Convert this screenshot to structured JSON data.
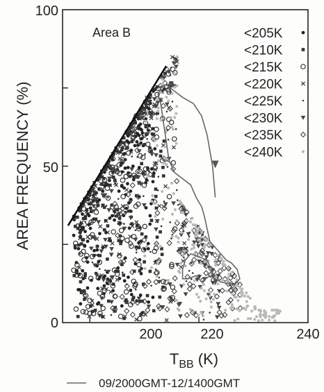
{
  "chart_data": {
    "type": "scatter",
    "xlabel": "T",
    "xlabel_sub": "BB",
    "xlabel_unit": " (K)",
    "ylabel": "AREA FREQUENCY (%)",
    "xlim": [
      195,
      240
    ],
    "ylim": [
      0,
      100
    ],
    "xticks": [
      "200",
      "220",
      "240"
    ],
    "yticks": [
      "0",
      "50",
      "100"
    ],
    "annotation": "Area B",
    "legend": {
      "position": "top-right",
      "entries": [
        {
          "label": "<205K",
          "marker": "dot"
        },
        {
          "label": "<210K",
          "marker": "square"
        },
        {
          "label": "<215K",
          "marker": "circle"
        },
        {
          "label": "<220K",
          "marker": "x"
        },
        {
          "label": "<225K",
          "marker": "small-dot"
        },
        {
          "label": "<230K",
          "marker": "triangle"
        },
        {
          "label": "<235K",
          "marker": "diamond"
        },
        {
          "label": "<240K",
          "marker": "gray-dot"
        }
      ]
    },
    "reference_line": {
      "x": [
        196,
        214
      ],
      "y": [
        31,
        82
      ]
    },
    "trajectory": {
      "label": "09/2000GMT-12/1400GMT",
      "x": [
        223,
        222.5,
        221.5,
        220,
        218.5,
        217.5,
        217,
        217,
        218,
        219.5,
        220.5,
        222,
        224,
        226.5,
        227.5,
        227,
        226.5,
        226,
        225,
        224,
        223,
        222,
        221.5,
        221,
        220.5,
        219.5,
        219,
        218.5,
        217,
        215.5,
        214.5,
        214,
        213.5,
        213,
        212.5,
        213,
        214,
        215.5,
        217,
        219,
        220.5,
        221.5,
        222.5,
        223
      ],
      "y": [
        12,
        16,
        20,
        21,
        22,
        20,
        17,
        14,
        14,
        15,
        13,
        15,
        13,
        12,
        14,
        17,
        18,
        19,
        20,
        22,
        24,
        26,
        30,
        34,
        37,
        40,
        42,
        44,
        46,
        48,
        52,
        58,
        64,
        70,
        73,
        75,
        76,
        74,
        72,
        70,
        66,
        60,
        50,
        40
      ]
    }
  }
}
